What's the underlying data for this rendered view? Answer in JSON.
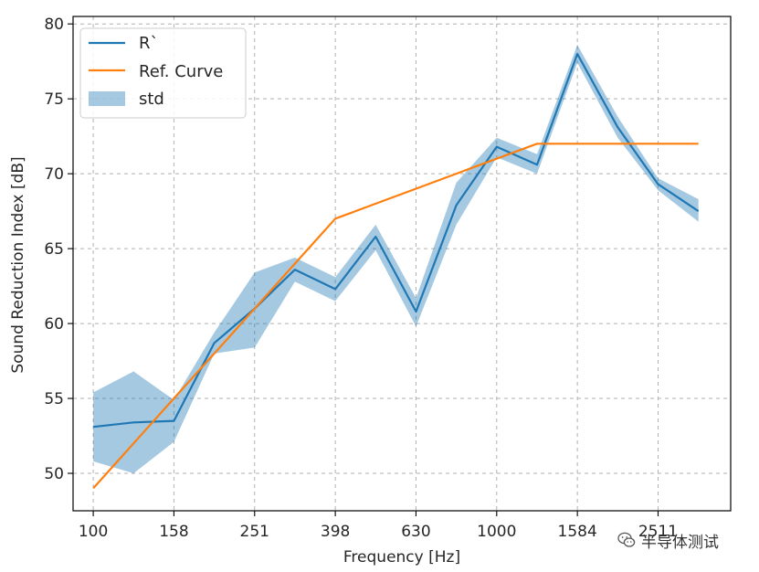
{
  "chart_data": {
    "type": "line",
    "xlabel": "Frequency [Hz]",
    "ylabel": "Sound Reduction Index [dB]",
    "x_index": [
      0,
      1,
      2,
      3,
      4,
      5,
      6,
      7,
      8,
      9,
      10,
      11,
      12,
      13,
      14,
      15
    ],
    "x_tick_positions": [
      0,
      2,
      4,
      6,
      8,
      10,
      12,
      14
    ],
    "x_tick_labels": [
      "100",
      "158",
      "251",
      "398",
      "630",
      "1000",
      "1584",
      "2511"
    ],
    "ylim": [
      47.5,
      80.5
    ],
    "y_ticks": [
      50,
      55,
      60,
      65,
      70,
      75,
      80
    ],
    "grid": true,
    "legend_position": "top-left",
    "colors": {
      "primary": "#1f77b4",
      "reference": "#ff7f0e",
      "band": "#1f77b4",
      "grid": "#b0b0b0"
    },
    "series": [
      {
        "name": "R`",
        "type": "line",
        "values": [
          53.1,
          53.4,
          53.5,
          58.7,
          61.0,
          63.6,
          62.3,
          65.8,
          60.8,
          67.9,
          71.8,
          70.6,
          78.0,
          73.1,
          69.3,
          67.5
        ]
      },
      {
        "name": "Ref. Curve",
        "type": "line",
        "values": [
          49.0,
          52.0,
          55.0,
          58.0,
          61.0,
          64.0,
          67.0,
          68.0,
          69.0,
          70.0,
          71.0,
          72.0,
          72.0,
          72.0,
          72.0,
          72.0
        ]
      },
      {
        "name": "std",
        "type": "band",
        "lower": [
          50.8,
          50.0,
          52.1,
          58.0,
          58.4,
          62.8,
          61.5,
          64.9,
          59.8,
          66.6,
          71.1,
          70.0,
          77.4,
          72.4,
          68.9,
          66.8
        ],
        "upper": [
          55.4,
          56.8,
          54.9,
          59.4,
          63.4,
          64.4,
          63.1,
          66.6,
          61.7,
          69.4,
          72.4,
          71.3,
          78.6,
          73.8,
          69.7,
          68.3
        ]
      }
    ]
  },
  "watermark": {
    "icon": "wechat-icon",
    "text": "半导体测试"
  }
}
